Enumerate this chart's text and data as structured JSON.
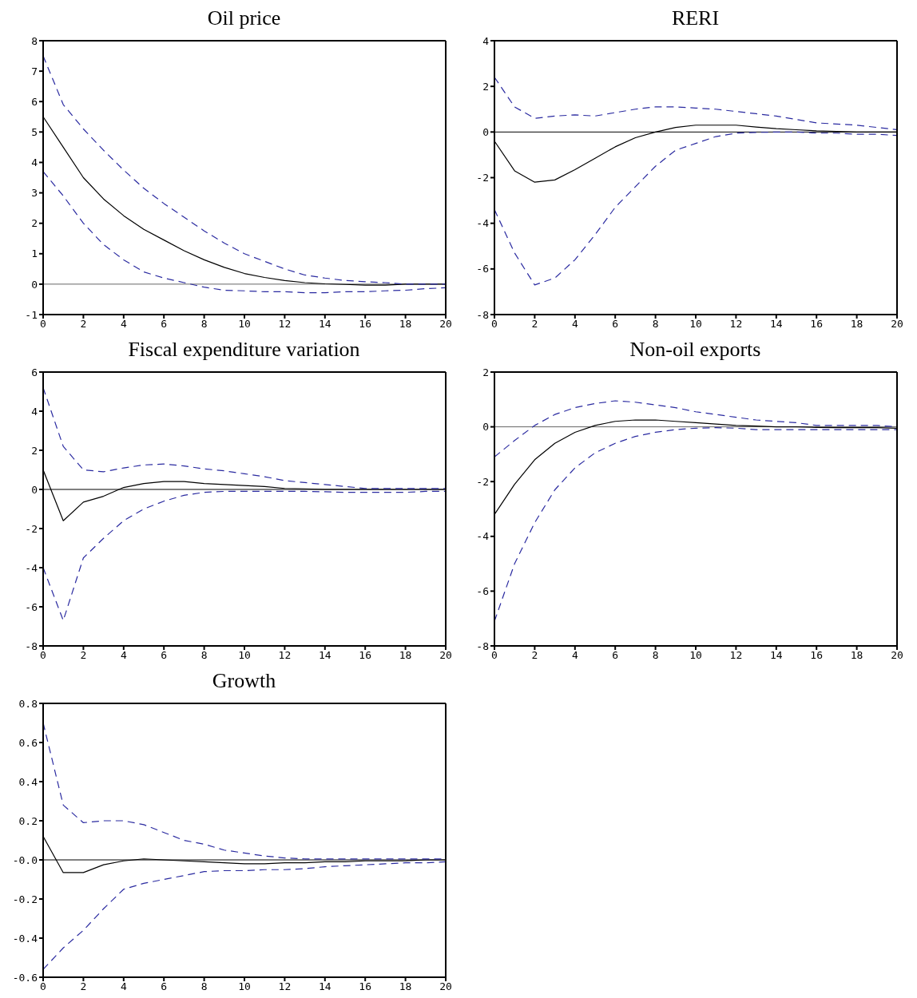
{
  "chart_data": [
    {
      "type": "line",
      "title": "Oil price",
      "x": [
        0,
        1,
        2,
        3,
        4,
        5,
        6,
        7,
        8,
        9,
        10,
        11,
        12,
        13,
        14,
        15,
        16,
        17,
        18,
        19,
        20
      ],
      "xlim": [
        0,
        20
      ],
      "xticks": [
        0,
        2,
        4,
        6,
        8,
        10,
        12,
        14,
        16,
        18,
        20
      ],
      "ylim": [
        -1,
        8
      ],
      "yticks": [
        -1,
        0,
        1,
        2,
        3,
        4,
        5,
        6,
        7,
        8
      ],
      "ref_lines": [
        {
          "axis": "y",
          "value": 0,
          "color": "#666666"
        }
      ],
      "series": [
        {
          "color": "#000000",
          "line_style": "solid",
          "values": [
            5.5,
            4.5,
            3.5,
            2.8,
            2.25,
            1.8,
            1.45,
            1.1,
            0.8,
            0.55,
            0.35,
            0.22,
            0.12,
            0.05,
            0.01,
            -0.01,
            -0.03,
            -0.03,
            0.0,
            0.0,
            0.0
          ]
        },
        {
          "color": "#2a2aa0",
          "line_style": "dashed",
          "values": [
            7.5,
            5.9,
            5.1,
            4.4,
            3.75,
            3.15,
            2.65,
            2.2,
            1.75,
            1.35,
            1.0,
            0.75,
            0.5,
            0.3,
            0.2,
            0.12,
            0.08,
            0.05,
            0.0,
            0.0,
            0.0
          ]
        },
        {
          "color": "#2a2aa0",
          "line_style": "dashed",
          "values": [
            3.7,
            2.9,
            2.0,
            1.3,
            0.8,
            0.4,
            0.2,
            0.05,
            -0.1,
            -0.2,
            -0.22,
            -0.25,
            -0.25,
            -0.28,
            -0.28,
            -0.25,
            -0.25,
            -0.22,
            -0.2,
            -0.15,
            -0.12
          ]
        }
      ]
    },
    {
      "type": "line",
      "title": "RERI",
      "x": [
        0,
        1,
        2,
        3,
        4,
        5,
        6,
        7,
        8,
        9,
        10,
        11,
        12,
        13,
        14,
        15,
        16,
        17,
        18,
        19,
        20
      ],
      "xlim": [
        0,
        20
      ],
      "xticks": [
        0,
        2,
        4,
        6,
        8,
        10,
        12,
        14,
        16,
        18,
        20
      ],
      "ylim": [
        -8,
        4
      ],
      "yticks": [
        -8,
        -6,
        -4,
        -2,
        0,
        2,
        4
      ],
      "ref_lines": [
        {
          "axis": "y",
          "value": 0,
          "color": "#000000"
        }
      ],
      "series": [
        {
          "color": "#000000",
          "line_style": "solid",
          "values": [
            -0.4,
            -1.7,
            -2.2,
            -2.1,
            -1.65,
            -1.15,
            -0.65,
            -0.25,
            0.0,
            0.2,
            0.3,
            0.3,
            0.3,
            0.22,
            0.15,
            0.1,
            0.05,
            0.03,
            0.0,
            0.0,
            0.0
          ]
        },
        {
          "color": "#2a2aa0",
          "line_style": "dashed",
          "values": [
            2.4,
            1.1,
            0.6,
            0.7,
            0.75,
            0.7,
            0.85,
            1.0,
            1.1,
            1.1,
            1.05,
            1.0,
            0.9,
            0.8,
            0.7,
            0.55,
            0.4,
            0.35,
            0.3,
            0.2,
            0.1
          ]
        },
        {
          "color": "#2a2aa0",
          "line_style": "dashed",
          "values": [
            -3.4,
            -5.3,
            -6.7,
            -6.4,
            -5.6,
            -4.5,
            -3.3,
            -2.4,
            -1.5,
            -0.8,
            -0.5,
            -0.2,
            -0.05,
            -0.02,
            0.0,
            0.0,
            -0.05,
            -0.05,
            -0.1,
            -0.1,
            -0.15
          ]
        }
      ]
    },
    {
      "type": "line",
      "title": "Fiscal expenditure variation",
      "x": [
        0,
        1,
        2,
        3,
        4,
        5,
        6,
        7,
        8,
        9,
        10,
        11,
        12,
        13,
        14,
        15,
        16,
        17,
        18,
        19,
        20
      ],
      "xlim": [
        0,
        20
      ],
      "xticks": [
        0,
        2,
        4,
        6,
        8,
        10,
        12,
        14,
        16,
        18,
        20
      ],
      "ylim": [
        -8,
        6
      ],
      "yticks": [
        -8,
        -6,
        -4,
        -2,
        0,
        2,
        4,
        6
      ],
      "ref_lines": [
        {
          "axis": "y",
          "value": 0,
          "color": "#000000"
        }
      ],
      "series": [
        {
          "color": "#000000",
          "line_style": "solid",
          "values": [
            1.0,
            -1.6,
            -0.65,
            -0.35,
            0.1,
            0.3,
            0.4,
            0.4,
            0.3,
            0.25,
            0.2,
            0.15,
            0.05,
            0.03,
            0.0,
            0.0,
            0.0,
            0.0,
            0.0,
            0.0,
            0.0
          ]
        },
        {
          "color": "#2a2aa0",
          "line_style": "dashed",
          "values": [
            5.2,
            2.2,
            1.0,
            0.9,
            1.1,
            1.25,
            1.3,
            1.2,
            1.05,
            0.95,
            0.8,
            0.65,
            0.45,
            0.35,
            0.25,
            0.15,
            0.05,
            0.05,
            0.05,
            0.05,
            0.05
          ]
        },
        {
          "color": "#2a2aa0",
          "line_style": "dashed",
          "values": [
            -4.0,
            -6.7,
            -3.5,
            -2.5,
            -1.6,
            -1.0,
            -0.6,
            -0.3,
            -0.15,
            -0.1,
            -0.1,
            -0.1,
            -0.1,
            -0.1,
            -0.12,
            -0.15,
            -0.15,
            -0.15,
            -0.15,
            -0.1,
            -0.1
          ]
        }
      ]
    },
    {
      "type": "line",
      "title": "Non-oil exports",
      "x": [
        0,
        1,
        2,
        3,
        4,
        5,
        6,
        7,
        8,
        9,
        10,
        11,
        12,
        13,
        14,
        15,
        16,
        17,
        18,
        19,
        20
      ],
      "xlim": [
        0,
        20
      ],
      "xticks": [
        0,
        2,
        4,
        6,
        8,
        10,
        12,
        14,
        16,
        18,
        20
      ],
      "ylim": [
        -8,
        2
      ],
      "yticks": [
        -8,
        -6,
        -4,
        -2,
        0,
        2
      ],
      "ref_lines": [
        {
          "axis": "y",
          "value": 0,
          "color": "#666666"
        }
      ],
      "series": [
        {
          "color": "#000000",
          "line_style": "solid",
          "values": [
            -3.2,
            -2.1,
            -1.2,
            -0.6,
            -0.2,
            0.05,
            0.2,
            0.25,
            0.25,
            0.2,
            0.15,
            0.1,
            0.05,
            0.03,
            0.0,
            0.0,
            -0.02,
            -0.03,
            -0.03,
            -0.03,
            -0.05
          ]
        },
        {
          "color": "#2a2aa0",
          "line_style": "dashed",
          "values": [
            -1.1,
            -0.5,
            0.05,
            0.45,
            0.7,
            0.85,
            0.95,
            0.9,
            0.8,
            0.7,
            0.55,
            0.45,
            0.35,
            0.25,
            0.2,
            0.15,
            0.05,
            0.05,
            0.05,
            0.05,
            0.0
          ]
        },
        {
          "color": "#2a2aa0",
          "line_style": "dashed",
          "values": [
            -7.1,
            -5.0,
            -3.5,
            -2.3,
            -1.5,
            -0.95,
            -0.6,
            -0.35,
            -0.2,
            -0.1,
            -0.05,
            -0.03,
            -0.05,
            -0.1,
            -0.1,
            -0.1,
            -0.1,
            -0.1,
            -0.1,
            -0.1,
            -0.1
          ]
        }
      ]
    },
    {
      "type": "line",
      "title": "Growth",
      "x": [
        0,
        1,
        2,
        3,
        4,
        5,
        6,
        7,
        8,
        9,
        10,
        11,
        12,
        13,
        14,
        15,
        16,
        17,
        18,
        19,
        20
      ],
      "xlim": [
        0,
        20
      ],
      "xticks": [
        0,
        2,
        4,
        6,
        8,
        10,
        12,
        14,
        16,
        18,
        20
      ],
      "ylim": [
        -0.6,
        0.8
      ],
      "yticks": [
        -0.6,
        -0.4,
        -0.2,
        {
          "value": 0,
          "label": "-0.0"
        },
        0.2,
        0.4,
        0.6,
        0.8
      ],
      "ref_lines": [
        {
          "axis": "y",
          "value": 0,
          "color": "#000000"
        }
      ],
      "series": [
        {
          "color": "#000000",
          "line_style": "solid",
          "values": [
            0.12,
            -0.065,
            -0.065,
            -0.025,
            -0.005,
            0.005,
            0.0,
            -0.005,
            -0.01,
            -0.015,
            -0.02,
            -0.02,
            -0.015,
            -0.015,
            -0.01,
            -0.01,
            -0.005,
            -0.005,
            -0.005,
            0.0,
            0.0
          ]
        },
        {
          "color": "#2a2aa0",
          "line_style": "dashed",
          "values": [
            0.7,
            0.28,
            0.19,
            0.2,
            0.2,
            0.18,
            0.14,
            0.1,
            0.08,
            0.05,
            0.035,
            0.02,
            0.01,
            0.005,
            0.005,
            0.005,
            0.005,
            0.005,
            0.005,
            0.005,
            0.005
          ]
        },
        {
          "color": "#2a2aa0",
          "line_style": "dashed",
          "values": [
            -0.56,
            -0.45,
            -0.36,
            -0.25,
            -0.15,
            -0.12,
            -0.1,
            -0.08,
            -0.06,
            -0.055,
            -0.055,
            -0.05,
            -0.05,
            -0.045,
            -0.035,
            -0.03,
            -0.025,
            -0.02,
            -0.015,
            -0.015,
            -0.01
          ]
        }
      ]
    }
  ]
}
